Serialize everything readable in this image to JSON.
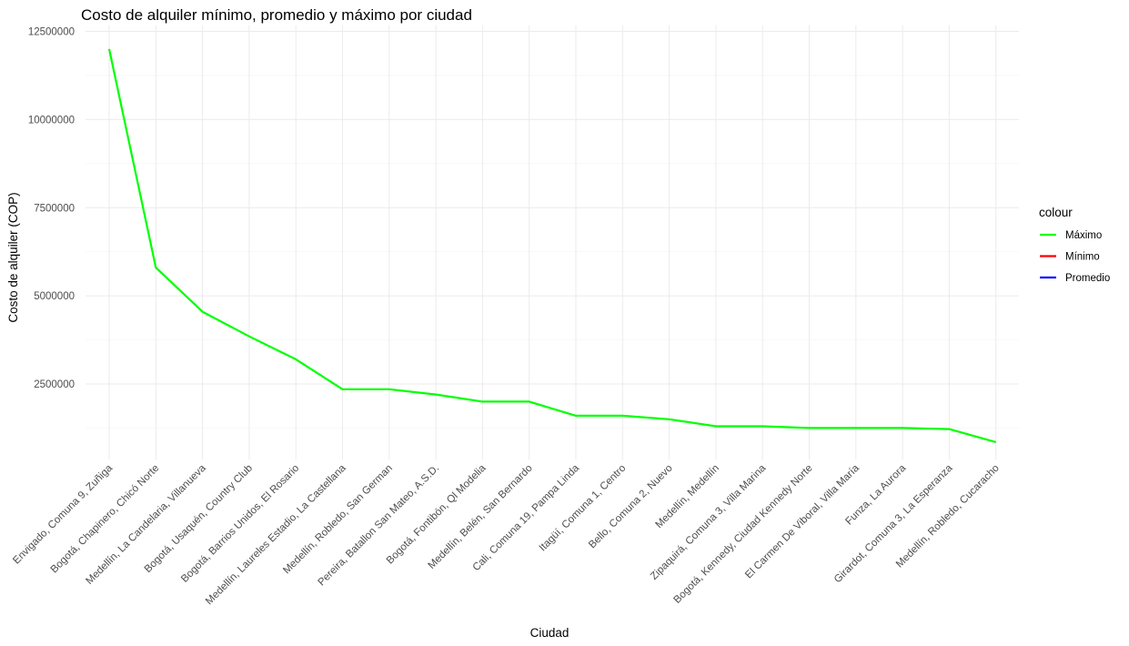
{
  "chart_data": {
    "type": "line",
    "title": "Costo de alquiler mínimo, promedio y máximo por ciudad",
    "xlabel": "Ciudad",
    "ylabel": "Costo de alquiler (COP)",
    "categories": [
      "Envigado, Comuna 9, Zuñiga",
      "Bogotá, Chapinero, Chicó Norte",
      "Medellín, La Candelaria, Villanueva",
      "Bogotá, Usaquén, Country Club",
      "Bogotá, Barrios Unidos, El Rosario",
      "Medellín, Laureles Estadio, La Castellana",
      "Medellín, Robledo, San German",
      "Pereira, Batallon San Mateo, A.S.D.",
      "Bogotá, Fontibón, Ql Modelia",
      "Medellín, Belén, San Bernardo",
      "Cali, Comuna 19, Pampa Linda",
      "Itagüí, Comuna 1, Centro",
      "Bello, Comuna 2, Nuevo",
      "Medellín, Medellín",
      "Zipaquirá, Comuna 3, Villa Marina",
      "Bogotá, Kennedy, Ciudad Kennedy Norte",
      "El Carmen De Viboral, Villa María",
      "Funza, La Aurora",
      "Girardot, Comuna 3, La Esperanza",
      "Medellín, Robledo, Cucaracho"
    ],
    "y_ticks": [
      "2500000",
      "5000000",
      "7500000",
      "10000000",
      "12500000"
    ],
    "y_tick_values": [
      2500000,
      5000000,
      7500000,
      10000000,
      12500000
    ],
    "ylim": [
      600000,
      12500000
    ],
    "grid": true,
    "legend": {
      "title": "colour",
      "placement": "right",
      "entries": [
        {
          "name": "Máximo",
          "color": "#00ff00"
        },
        {
          "name": "Mínimo",
          "color": "#ff0000"
        },
        {
          "name": "Promedio",
          "color": "#0000ff"
        }
      ]
    },
    "series": [
      {
        "name": "Máximo",
        "color": "#00ff00",
        "values": [
          12000000,
          5800000,
          4550000,
          3850000,
          3200000,
          2350000,
          2350000,
          2200000,
          2000000,
          2000000,
          1600000,
          1600000,
          1500000,
          1300000,
          1300000,
          1250000,
          1250000,
          1250000,
          1220000,
          850000
        ]
      }
    ]
  }
}
